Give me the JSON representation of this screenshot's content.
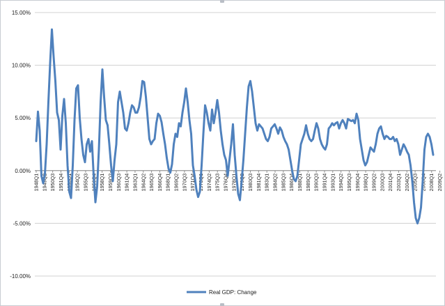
{
  "chart_data": {
    "type": "line",
    "title": "",
    "xlabel": "",
    "ylabel": "",
    "ylim": [
      -10,
      15
    ],
    "y_ticks": [
      "15.00%",
      "10.00%",
      "5.00%",
      "0.00%",
      "-5.00%",
      "-10.00%"
    ],
    "y_tick_values": [
      15,
      10,
      5,
      0,
      -5,
      -10
    ],
    "grid": "horizontal",
    "legend_position": "bottom",
    "category_labels": [
      "1948Q1",
      "1949Q2",
      "1950Q3",
      "1951Q4",
      "1953Q1",
      "1954Q2",
      "1955Q3",
      "1956Q4",
      "1958Q1",
      "1959Q2",
      "1960Q3",
      "1961Q4",
      "1963Q1",
      "1964Q2",
      "1965Q3",
      "1966Q4",
      "1968Q1",
      "1969Q2",
      "1970Q3",
      "1971Q4",
      "1973Q1",
      "1974Q2",
      "1975Q3",
      "1976Q4",
      "1978Q1",
      "1979Q2",
      "1980Q3",
      "1981Q4",
      "1983Q1",
      "1984Q2",
      "1985Q3",
      "1986Q4",
      "1988Q1",
      "1989Q2",
      "1990Q3",
      "1991Q4",
      "1993Q1",
      "1994Q2",
      "1995Q3",
      "1996Q4",
      "1998Q1",
      "1999Q2",
      "2000Q3",
      "2001Q4",
      "2003Q1",
      "2004Q2",
      "2005Q3",
      "2006Q4",
      "2008Q1",
      "2009Q2",
      "2010Q3"
    ],
    "series": [
      {
        "name": "Real GDP: Change",
        "color": "#4f81bd",
        "x_start_year": 1948,
        "x_end_year": 2011.25,
        "values": [
          2.8,
          5.6,
          3.8,
          -0.5,
          -1.2,
          -0.3,
          2.5,
          6.5,
          10.2,
          13.4,
          10.8,
          8.5,
          5.5,
          4.8,
          2.0,
          5.2,
          6.8,
          4.5,
          0.5,
          -2.0,
          -2.6,
          0.5,
          4.8,
          7.8,
          8.1,
          5.0,
          3.0,
          1.5,
          0.8,
          2.5,
          3.0,
          1.8,
          2.8,
          -0.5,
          -3.0,
          -1.5,
          2.0,
          6.5,
          9.6,
          7.0,
          4.8,
          4.3,
          2.5,
          0.5,
          -1.0,
          1.0,
          2.5,
          6.5,
          7.5,
          6.5,
          5.5,
          4.0,
          3.8,
          4.5,
          5.5,
          6.2,
          6.0,
          5.5,
          5.5,
          6.0,
          7.0,
          8.5,
          8.4,
          7.0,
          5.0,
          3.0,
          2.5,
          2.8,
          3.0,
          4.5,
          5.4,
          5.2,
          4.6,
          3.5,
          2.5,
          1.2,
          0.2,
          -0.2,
          0.6,
          2.5,
          3.5,
          3.2,
          4.5,
          4.2,
          5.5,
          6.5,
          7.8,
          6.5,
          4.8,
          3.5,
          0.5,
          -0.5,
          -1.8,
          -2.5,
          -2.0,
          0.5,
          3.5,
          6.2,
          5.5,
          4.5,
          3.8,
          5.8,
          4.5,
          5.5,
          6.7,
          5.5,
          3.8,
          2.5,
          1.5,
          1.0,
          -0.5,
          1.0,
          2.5,
          4.4,
          1.5,
          -0.5,
          -2.2,
          -2.8,
          -1.0,
          1.0,
          3.5,
          6.0,
          8.0,
          8.5,
          7.5,
          6.0,
          4.5,
          3.8,
          4.4,
          4.2,
          4.0,
          3.5,
          3.0,
          2.8,
          3.2,
          4.0,
          4.2,
          4.4,
          4.0,
          3.5,
          4.1,
          3.8,
          3.2,
          2.8,
          2.5,
          2.0,
          1.0,
          0.0,
          -0.8,
          -1.0,
          -0.5,
          1.0,
          2.5,
          3.0,
          3.5,
          4.3,
          3.5,
          3.0,
          2.8,
          3.0,
          3.8,
          4.5,
          4.0,
          3.0,
          2.5,
          2.2,
          2.0,
          2.5,
          4.0,
          4.2,
          4.5,
          4.3,
          4.5,
          4.6,
          4.0,
          4.5,
          4.8,
          4.5,
          4.0,
          4.9,
          4.8,
          4.7,
          4.8,
          4.5,
          5.4,
          4.8,
          3.0,
          2.0,
          1.0,
          0.5,
          0.8,
          1.5,
          2.2,
          2.0,
          1.8,
          2.5,
          3.5,
          4.0,
          4.2,
          3.5,
          3.0,
          3.3,
          3.2,
          3.0,
          3.0,
          3.2,
          2.8,
          3.0,
          2.5,
          1.5,
          2.0,
          2.5,
          2.2,
          1.8,
          1.5,
          0.5,
          -1.0,
          -3.0,
          -4.5,
          -5.0,
          -4.5,
          -3.5,
          -1.0,
          2.0,
          3.2,
          3.5,
          3.2,
          2.5,
          1.5
        ]
      }
    ]
  },
  "legend": {
    "label": "Real GDP: Change"
  }
}
